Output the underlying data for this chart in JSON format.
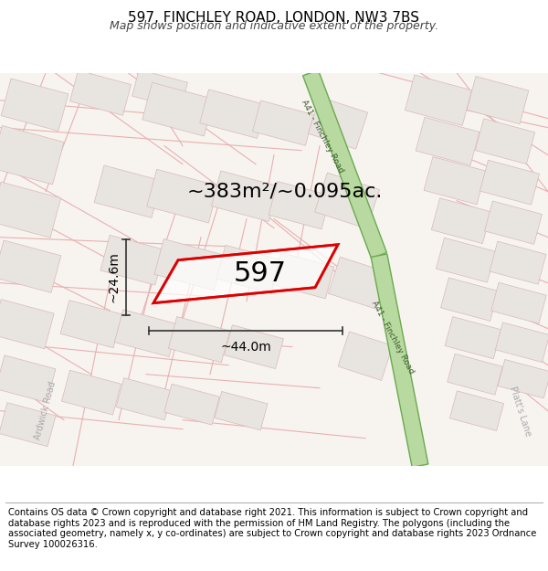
{
  "title": "597, FINCHLEY ROAD, LONDON, NW3 7BS",
  "subtitle": "Map shows position and indicative extent of the property.",
  "area_text": "~383m²/~0.095ac.",
  "property_number": "597",
  "width_label": "~44.0m",
  "height_label": "~24.6m",
  "footer": "Contains OS data © Crown copyright and database right 2021. This information is subject to Crown copyright and database rights 2023 and is reproduced with the permission of HM Land Registry. The polygons (including the associated geometry, namely x, y co-ordinates) are subject to Crown copyright and database rights 2023 Ordnance Survey 100026316.",
  "map_bg": "#f7f4f0",
  "block_fill": "#e8e5e0",
  "block_stroke": "#d8b8b8",
  "road_line_color": "#e8b0b0",
  "green_road_fill": "#b8d9a0",
  "green_road_stroke": "#6aaa50",
  "green_road_label_color": "#3a5a2a",
  "property_stroke": "#dd0000",
  "property_lw": 2.0,
  "dim_line_color": "#333333",
  "label_color": "#222222",
  "road_label_color": "#666666",
  "footer_fontsize": 7.2,
  "title_fontsize": 11,
  "subtitle_fontsize": 9,
  "area_fontsize": 16,
  "num_fontsize": 22,
  "dim_fontsize": 10
}
